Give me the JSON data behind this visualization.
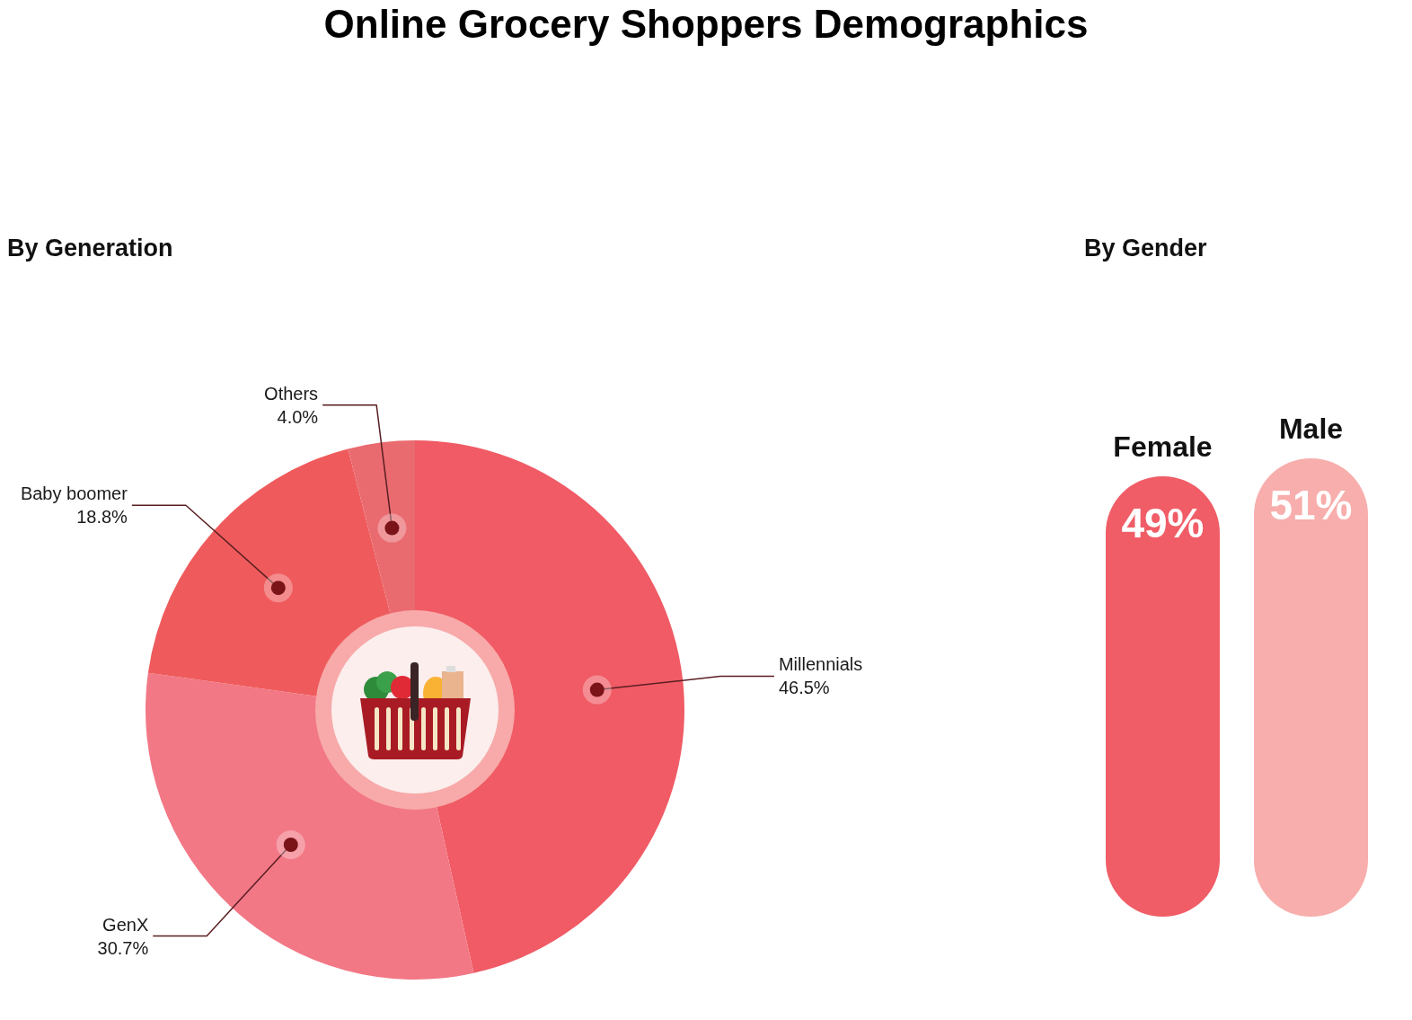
{
  "chart_data": [
    {
      "type": "donut",
      "title": "Online Grocery Shoppers Demographics",
      "subtitle": "By Generation",
      "categories": [
        "Millennials",
        "GenX",
        "Baby boomer",
        "Others"
      ],
      "values": [
        46.5,
        30.7,
        18.8,
        4.0
      ],
      "colors": [
        "#f05b65",
        "#f27886",
        "#ef5b5c",
        "#e96b70"
      ],
      "value_labels": [
        "46.5%",
        "30.7%",
        "18.8%",
        "4.0%"
      ]
    },
    {
      "type": "bar",
      "title": "By Gender",
      "categories": [
        "Female",
        "Male"
      ],
      "values": [
        49,
        51
      ],
      "colors": [
        "#f05d67",
        "#f7aeac"
      ],
      "value_labels": [
        "49%",
        "51%"
      ]
    }
  ]
}
